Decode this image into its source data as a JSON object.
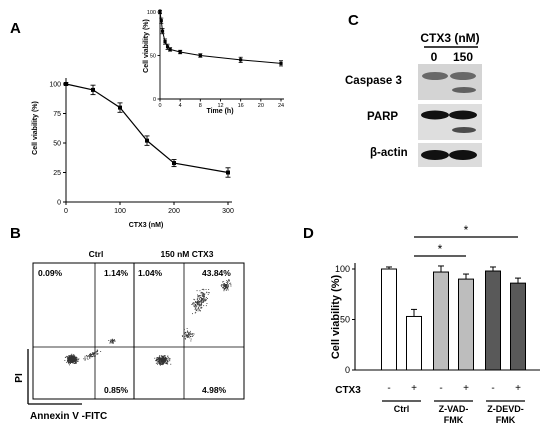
{
  "panels": {
    "A": "A",
    "B": "B",
    "C": "C",
    "D": "D"
  },
  "chart_data": [
    {
      "id": "A-main",
      "type": "line",
      "x": [
        0,
        50,
        100,
        150,
        200,
        300
      ],
      "y": [
        100,
        95,
        80,
        52,
        33,
        25
      ],
      "err": [
        1,
        4,
        4,
        4,
        3,
        4
      ],
      "xlabel": "CTX3 (nM)",
      "ylabel": "Cell viability (%)",
      "xlim": [
        0,
        300
      ],
      "ylim": [
        0,
        100
      ],
      "xticks": [
        "0",
        "100",
        "200",
        "300"
      ],
      "yticks": [
        "0",
        "25",
        "50",
        "75",
        "100"
      ],
      "grid": false
    },
    {
      "id": "A-inset",
      "type": "line",
      "x": [
        0,
        0.25,
        0.5,
        1,
        1.5,
        2,
        4,
        8,
        16,
        24
      ],
      "y": [
        100,
        90,
        78,
        66,
        60,
        57,
        54,
        50,
        45,
        41
      ],
      "err": [
        2,
        3,
        3,
        3,
        3,
        2,
        2,
        2,
        3,
        3
      ],
      "xlabel": "Time (h)",
      "ylabel": "Cell viability (%)",
      "xlim": [
        0,
        24
      ],
      "ylim": [
        0,
        100
      ],
      "xticks": [
        "0",
        "4",
        "8",
        "12",
        "16",
        "20",
        "24"
      ],
      "yticks": [
        "0",
        "50",
        "100"
      ],
      "grid": false
    },
    {
      "id": "D",
      "type": "bar",
      "values": [
        100,
        53,
        97,
        90,
        98,
        86
      ],
      "err": [
        2,
        7,
        6,
        5,
        4,
        5
      ],
      "colors": [
        "#ffffff",
        "#ffffff",
        "#bdbdbd",
        "#bdbdbd",
        "#595959",
        "#595959"
      ],
      "ctx3_signs": [
        "-",
        "+",
        "-",
        "+",
        "-",
        "+"
      ],
      "ctx3_label": "CTX3",
      "groups": [
        "Ctrl",
        "Z-VAD-\nFMK",
        "Z-DEVD-\nFMK"
      ],
      "ylabel": "Cell viability (%)",
      "ylim": [
        0,
        100
      ],
      "yticks": [
        "0",
        "50",
        "100"
      ],
      "significance": [
        "*",
        "*"
      ],
      "grid": false
    }
  ],
  "flow": {
    "plots": [
      {
        "title": "Ctrl",
        "q_ul": "0.09%",
        "q_ur": "1.14%",
        "q_lr": "0.85%"
      },
      {
        "title": "150 nM CTX3",
        "q_ul": "1.04%",
        "q_ur": "43.84%",
        "q_lr": "4.98%"
      }
    ],
    "ylabel": "PI",
    "xlabel": "Annexin V -FITC"
  },
  "blot": {
    "header": "CTX3 (nM)",
    "lanes": [
      "0",
      "150"
    ],
    "rows": [
      "Caspase 3",
      "PARP",
      "β-actin"
    ]
  }
}
